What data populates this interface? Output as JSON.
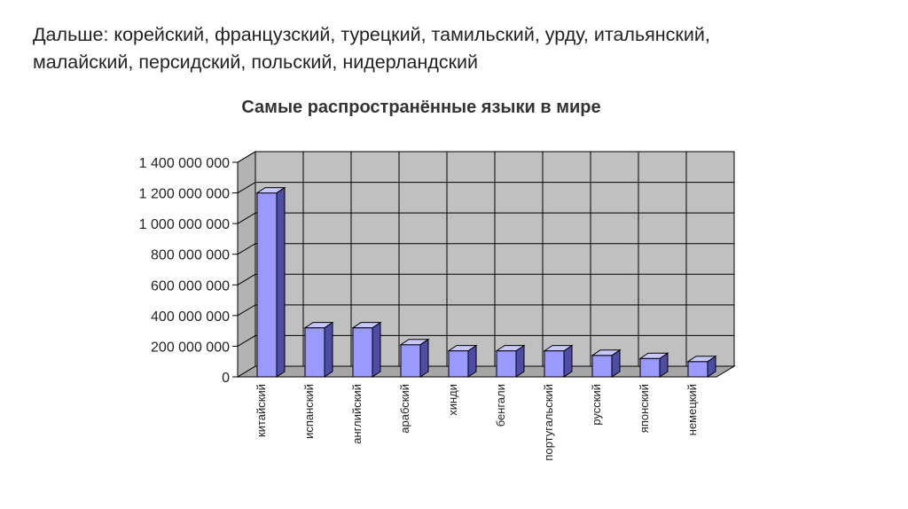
{
  "slide": {
    "lines": [
      "Дальше: корейский, французский, турецкий, тамильский, урду, итальянский,",
      "малайский, персидский, польский, нидерландский"
    ]
  },
  "chart_data": {
    "type": "bar",
    "title": "Самые распространённые языки в мире",
    "xlabel": "",
    "ylabel": "",
    "ylim": [
      0,
      1400000000
    ],
    "yticks": [
      0,
      200000000,
      400000000,
      600000000,
      800000000,
      1000000000,
      1200000000,
      1400000000
    ],
    "ytick_labels": [
      "0",
      "200 000 000",
      "400 000 000",
      "600 000 000",
      "800 000 000",
      "1 000 000 000",
      "1 200 000 000",
      "1 400 000 000"
    ],
    "categories": [
      "китайский",
      "испанский",
      "английский",
      "арабский",
      "хинди",
      "бенгали",
      "португальский",
      "русский",
      "японский",
      "немецкий"
    ],
    "values": [
      1200000000,
      320000000,
      320000000,
      210000000,
      170000000,
      170000000,
      170000000,
      140000000,
      120000000,
      100000000
    ],
    "grid": true,
    "legend": "none",
    "colors": {
      "bar_front": "#9999ff",
      "bar_side": "#4d4da6",
      "bar_top": "#c8c8ff",
      "wall": "#c0c0c0",
      "floor": "#a6a6a6",
      "gridline": "#000000"
    }
  }
}
